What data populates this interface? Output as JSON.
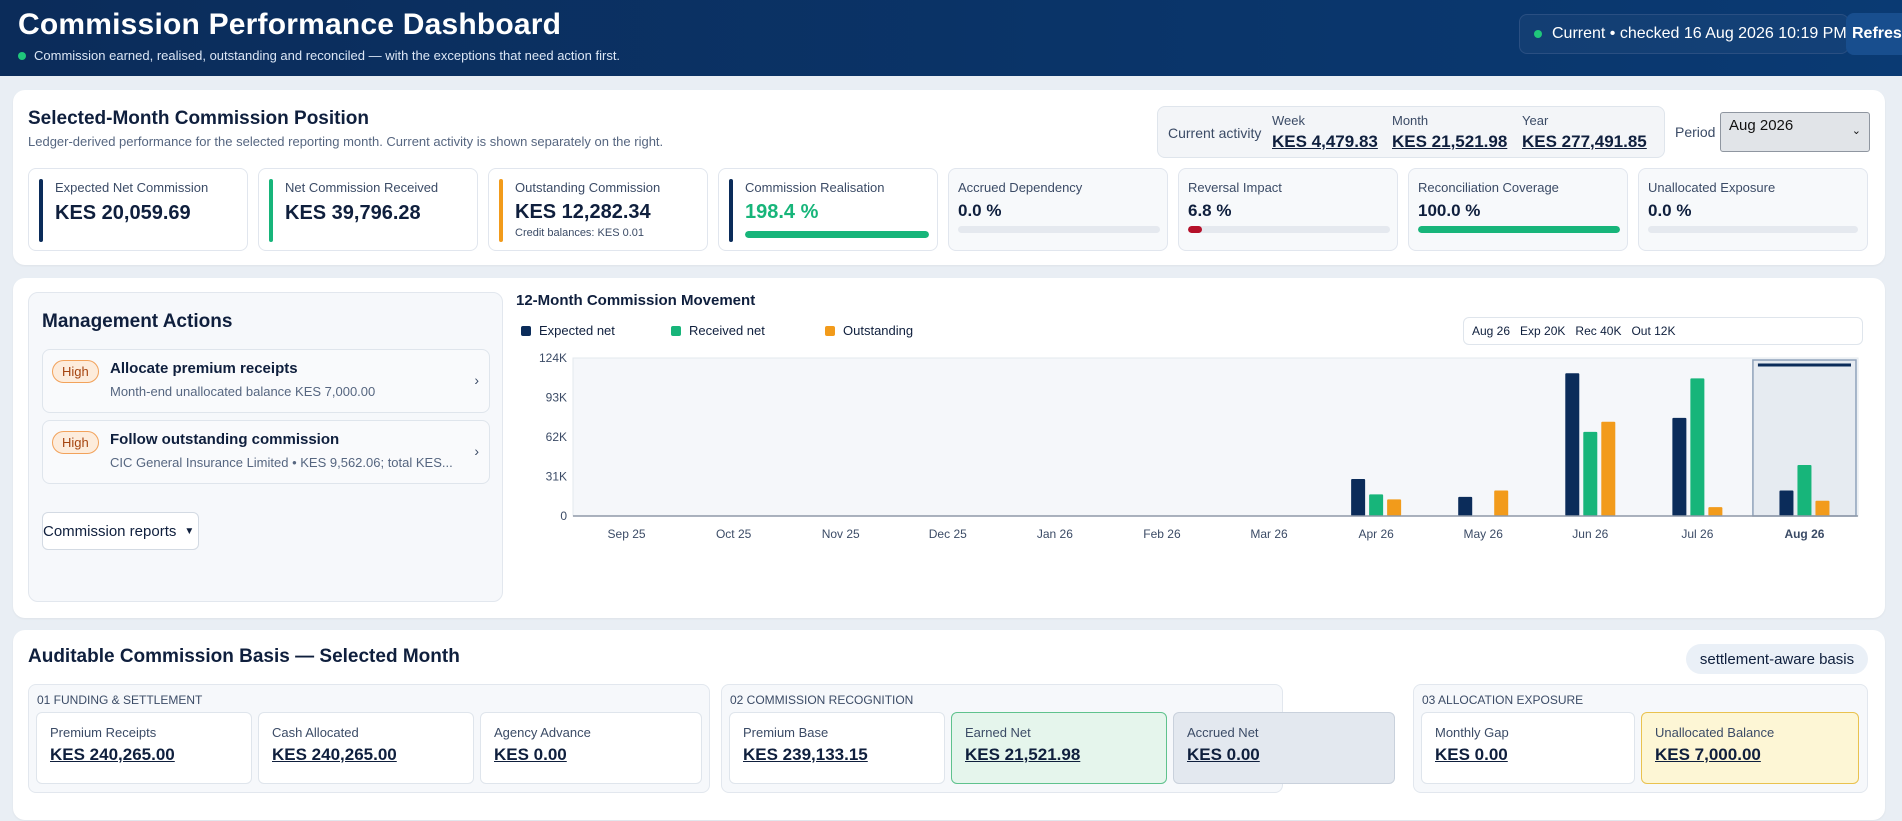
{
  "header": {
    "title": "Commission Performance Dashboard",
    "subtitle": "Commission earned, realised, outstanding and reconciled — with the exceptions that need action first.",
    "status": "Current • checked 16 Aug 2026 10:19 PM",
    "refresh_label": "Refresh",
    "status_color": "#1fc77b"
  },
  "position": {
    "title": "Selected-Month Commission Position",
    "subtitle": "Ledger-derived performance for the selected reporting month. Current activity is shown separately on the right.",
    "activity": {
      "label": "Current activity",
      "week_label": "Week",
      "week_value": "KES 4,479.83",
      "month_label": "Month",
      "month_value": "KES 21,521.98",
      "year_label": "Year",
      "year_value": "KES 277,491.85"
    },
    "period_label": "Period",
    "period_value": "Aug 2026",
    "kpis": [
      {
        "label": "Expected Net Commission",
        "value": "KES 20,059.69",
        "color": "#0b2c5a"
      },
      {
        "label": "Net Commission Received",
        "value": "KES 39,796.28",
        "color": "#17b57a"
      },
      {
        "label": "Outstanding Commission",
        "value": "KES 12,282.34",
        "note": "Credit balances: KES 0.01",
        "color": "#f29b1b"
      },
      {
        "label": "Commission Realisation",
        "value": "198.4 %",
        "color": "#0b2c5a",
        "value_color": "#17b57a",
        "progress": 1.0
      }
    ],
    "metrics": [
      {
        "label": "Accrued Dependency",
        "value": "0.0 %",
        "progress": 0.0,
        "color": "#17b57a"
      },
      {
        "label": "Reversal Impact",
        "value": "6.8 %",
        "progress": 0.068,
        "color": "#b5102a"
      },
      {
        "label": "Reconciliation Coverage",
        "value": "100.0 %",
        "progress": 1.0,
        "color": "#17b57a"
      },
      {
        "label": "Unallocated Exposure",
        "value": "0.0 %",
        "progress": 0.0,
        "color": "#17b57a"
      }
    ]
  },
  "actions": {
    "title": "Management Actions",
    "items": [
      {
        "priority": "High",
        "title": "Allocate premium receipts",
        "desc": "Month-end unallocated balance KES 7,000.00"
      },
      {
        "priority": "High",
        "title": "Follow outstanding commission",
        "desc": "CIC General Insurance Limited • KES 9,562.06; total KES..."
      }
    ],
    "reports_label": "Commission reports"
  },
  "chart_summary": {
    "month": "Aug 26",
    "exp": "Exp 20K",
    "rec": "Rec 40K",
    "out": "Out 12K"
  },
  "chart_data": {
    "type": "bar",
    "title": "12-Month Commission Movement",
    "categories": [
      "Sep 25",
      "Oct 25",
      "Nov 25",
      "Dec 25",
      "Jan 26",
      "Feb 26",
      "Mar 26",
      "Apr 26",
      "May 26",
      "Jun 26",
      "Jul 26",
      "Aug 26"
    ],
    "series": [
      {
        "name": "Expected net",
        "color": "#0b2c5a",
        "values": [
          0,
          0,
          0,
          0,
          0,
          0,
          0,
          29000,
          15000,
          112000,
          77000,
          20000
        ]
      },
      {
        "name": "Received net",
        "color": "#17b57a",
        "values": [
          0,
          0,
          0,
          0,
          0,
          0,
          0,
          17000,
          0,
          66000,
          108000,
          40000
        ]
      },
      {
        "name": "Outstanding",
        "color": "#f29b1b",
        "values": [
          0,
          0,
          0,
          0,
          0,
          0,
          0,
          13000,
          20000,
          74000,
          7000,
          12000
        ]
      }
    ],
    "yticks": [
      "0",
      "31K",
      "62K",
      "93K",
      "124K"
    ],
    "ylim": [
      0,
      124000
    ],
    "highlight": "Aug 26",
    "grid": false,
    "legend": "top-left"
  },
  "basis": {
    "title": "Auditable Commission Basis — Selected Month",
    "pill": "settlement-aware basis",
    "groups": [
      {
        "header": "01  FUNDING & SETTLEMENT",
        "cells": [
          {
            "label": "Premium Receipts",
            "value": "KES 240,265.00"
          },
          {
            "label": "Cash Allocated",
            "value": "KES 240,265.00"
          },
          {
            "label": "Agency Advance",
            "value": "KES 0.00"
          }
        ]
      },
      {
        "header": "02  COMMISSION RECOGNITION",
        "cells": [
          {
            "label": "Premium Base",
            "value": "KES 239,133.15"
          },
          {
            "label": "Earned Net",
            "value": "KES 21,521.98"
          },
          {
            "label": "Accrued Net",
            "value": "KES 0.00"
          }
        ]
      },
      {
        "header": "03  ALLOCATION EXPOSURE",
        "cells": [
          {
            "label": "Monthly Gap",
            "value": "KES 0.00"
          },
          {
            "label": "Unallocated Balance",
            "value": "KES 7,000.00"
          }
        ]
      }
    ]
  }
}
